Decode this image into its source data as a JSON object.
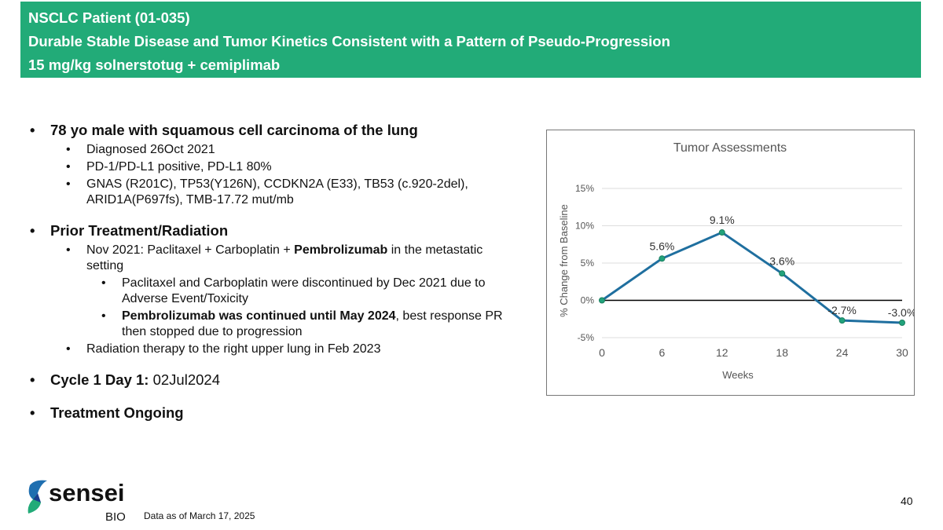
{
  "header": {
    "line1": "NSCLC Patient (01-035)",
    "line2": "Durable Stable Disease and Tumor Kinetics Consistent with a Pattern of Pseudo-Progression",
    "line3": "15 mg/kg solnerstotug + cemiplimab"
  },
  "bullets": {
    "b1": "78 yo male with squamous cell carcinoma of the lung",
    "b1_1": "Diagnosed 26Oct 2021",
    "b1_2": "PD-1/PD-L1 positive, PD-L1 80%",
    "b1_3": "GNAS (R201C), TP53(Y126N), CCDKN2A (E33), TB53 (c.920-2del), ARID1A(P697fs), TMB-17.72 mut/mb",
    "b2": "Prior Treatment/Radiation",
    "b2_1a": "Nov 2021: Paclitaxel + Carboplatin + ",
    "b2_1b": "Pembrolizumab",
    "b2_1c": " in the metastatic setting",
    "b2_1_1": "Paclitaxel and Carboplatin were discontinued by Dec 2021 due to Adverse Event/Toxicity",
    "b2_1_2a": "Pembrolizumab was continued until May 2024",
    "b2_1_2b": ", best response PR then stopped due to progression",
    "b2_2": "Radiation therapy to the right upper lung in Feb 2023",
    "b3_label": "Cycle 1 Day 1:",
    "b3_value": " 02Jul2024",
    "b4": "Treatment Ongoing"
  },
  "chart_data": {
    "type": "line",
    "title": "Tumor Assessments",
    "xlabel": "Weeks",
    "ylabel": "% Change from Baseline",
    "x": [
      0,
      6,
      12,
      18,
      24,
      30
    ],
    "values": [
      0,
      5.6,
      9.1,
      3.6,
      -2.7,
      -3.0
    ],
    "data_labels": [
      "",
      "5.6%",
      "9.1%",
      "3.6%",
      "-2.7%",
      "-3.0%"
    ],
    "x_ticks": [
      "0",
      "6",
      "12",
      "18",
      "24",
      "30"
    ],
    "y_ticks": [
      15,
      10,
      5,
      0,
      -5
    ],
    "y_tick_labels": [
      "15%",
      "10%",
      "5%",
      "0%",
      "-5%"
    ],
    "ylim": [
      -5,
      15
    ],
    "xlim": [
      0,
      30
    ],
    "grid": true,
    "line_color": "#1f6f9f",
    "marker_color": "#22a37c"
  },
  "footer": {
    "logo_text": "sensei",
    "logo_sub": "BIO",
    "footnote": "Data as of March 17, 2025",
    "page": "40"
  }
}
